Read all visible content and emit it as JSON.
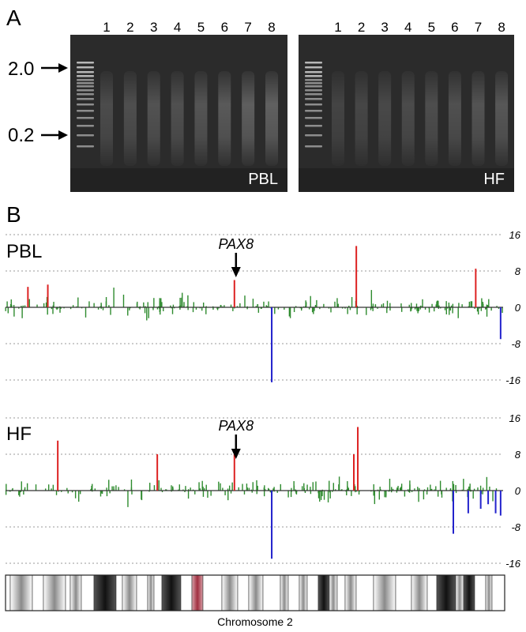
{
  "panel_a": {
    "label": "A",
    "size_markers": [
      "2.0",
      "0.2"
    ],
    "lane_numbers": [
      "1",
      "2",
      "3",
      "4",
      "5",
      "6",
      "7",
      "8"
    ],
    "gels": [
      {
        "label": "PBL",
        "lane_intensity": [
          0.55,
          0.6,
          0.66,
          0.62,
          0.7,
          0.78,
          0.86,
          0.9
        ]
      },
      {
        "label": "HF",
        "lane_intensity": [
          0.42,
          0.46,
          0.5,
          0.54,
          0.58,
          0.62,
          0.68,
          0.74
        ]
      }
    ]
  },
  "panel_b": {
    "label": "B",
    "axis_ticks": [
      "16",
      "8",
      "0",
      "-8",
      "-16"
    ],
    "annotation": "PAX8",
    "chromosome_label": "Chromosome 2",
    "colors": {
      "gain": "#dd2222",
      "loss": "#2222cc",
      "noise": "#2e8b2e",
      "centromere": "#c06070"
    }
  },
  "chart_data": [
    {
      "type": "bar",
      "title": "PBL",
      "ylim": [
        -16,
        16
      ],
      "yticks": [
        16,
        8,
        0,
        -8,
        -16
      ],
      "xlim": [
        0,
        1
      ],
      "annotation": {
        "text": "PAX8",
        "x": 0.46
      },
      "series": [
        {
          "kind": "gain",
          "x": [
            0.045,
            0.085,
            0.46,
            0.705,
            0.945
          ],
          "values": [
            4.5,
            5,
            6,
            13.5,
            8.5
          ]
        },
        {
          "kind": "loss",
          "x": [
            0.535,
            0.995
          ],
          "values": [
            -16.5,
            -7
          ]
        }
      ]
    },
    {
      "type": "bar",
      "title": "HF",
      "ylim": [
        -16,
        16
      ],
      "yticks": [
        16,
        8,
        0,
        -8,
        -16
      ],
      "xlim": [
        0,
        1
      ],
      "annotation": {
        "text": "PAX8",
        "x": 0.46
      },
      "series": [
        {
          "kind": "gain",
          "x": [
            0.105,
            0.305,
            0.46,
            0.7,
            0.708
          ],
          "values": [
            11,
            8,
            8,
            8,
            14
          ]
        },
        {
          "kind": "loss",
          "x": [
            0.535,
            0.9,
            0.93,
            0.955,
            0.97,
            0.985,
            0.995
          ],
          "values": [
            -15,
            -9.5,
            -5,
            -4,
            -3,
            -5,
            -5.5
          ]
        }
      ]
    }
  ]
}
